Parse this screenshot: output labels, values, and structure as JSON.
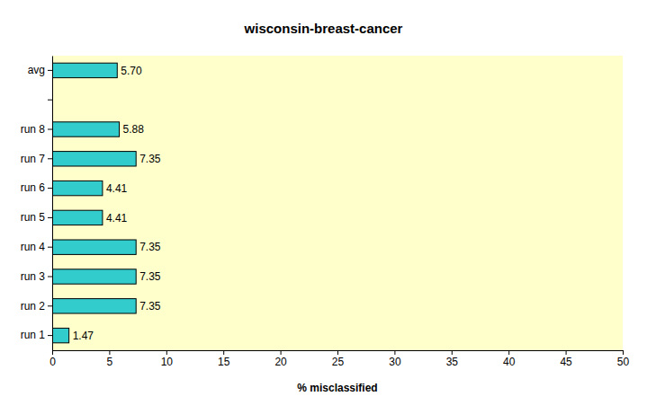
{
  "chart_data": {
    "type": "bar",
    "orientation": "horizontal",
    "title": "wisconsin-breast-cancer",
    "x_label": "% misclassified",
    "categories": [
      "run 1",
      "run 2",
      "run 3",
      "run 4",
      "run 5",
      "run 6",
      "run 7",
      "run 8",
      null,
      "avg"
    ],
    "values": [
      1.47,
      7.35,
      7.35,
      7.35,
      4.41,
      4.41,
      7.35,
      5.88,
      null,
      5.7
    ],
    "value_labels": [
      "1.47",
      "7.35",
      "7.35",
      "7.35",
      "4.41",
      "4.41",
      "7.35",
      "5.88",
      null,
      "5.70"
    ],
    "color": "#33cccc",
    "xlim": [
      0,
      50
    ],
    "xticks": [
      0,
      5,
      10,
      15,
      20,
      25,
      30,
      35,
      40,
      45,
      50
    ],
    "grid": false,
    "data_labels": true
  }
}
